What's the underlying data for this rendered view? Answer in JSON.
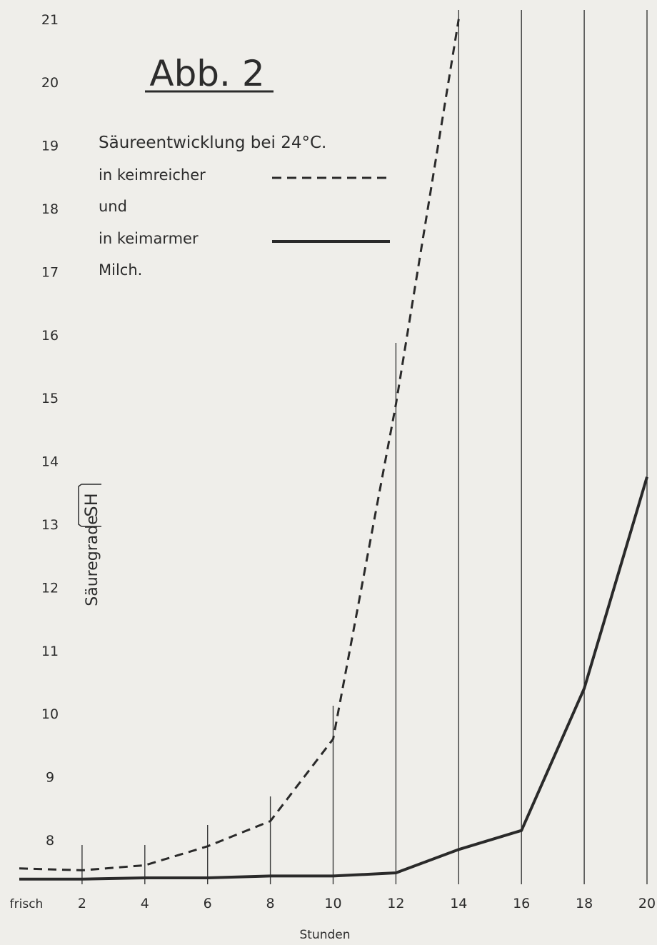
{
  "chart_data": {
    "type": "line",
    "title": "Abb. 2",
    "legend_title": "Säureentwicklung bei 24°C.",
    "legend_lines": [
      "in keimreicher",
      "und",
      "in keimarmer",
      "Milch."
    ],
    "xlabel": "Stunden",
    "ylabel": "Säuregrade",
    "ylabel_unit": "SH",
    "x_tick_labels": [
      "frisch",
      "2",
      "4",
      "6",
      "8",
      "10",
      "12",
      "14",
      "16",
      "18",
      "20"
    ],
    "y_tick_labels": [
      "8",
      "9",
      "10",
      "11",
      "12",
      "13",
      "14",
      "15",
      "16",
      "17",
      "18",
      "19",
      "20",
      "21"
    ],
    "xlim": [
      0,
      20
    ],
    "ylim": [
      7,
      21
    ],
    "grid": false,
    "legend_position": "top-left",
    "series": [
      {
        "style": "dashed",
        "color": "#2a2a2a",
        "x": [
          0,
          2,
          4,
          6,
          8,
          10,
          12,
          14
        ],
        "y": [
          7.55,
          7.52,
          7.6,
          7.9,
          8.3,
          9.6,
          14.9,
          21.0
        ]
      },
      {
        "style": "solid",
        "color": "#2a2a2a",
        "x": [
          0,
          2,
          4,
          6,
          8,
          10,
          12,
          14,
          16,
          18,
          20
        ],
        "y": [
          7.38,
          7.38,
          7.4,
          7.4,
          7.43,
          7.43,
          7.48,
          7.85,
          8.15,
          10.4,
          13.75
        ]
      }
    ]
  }
}
